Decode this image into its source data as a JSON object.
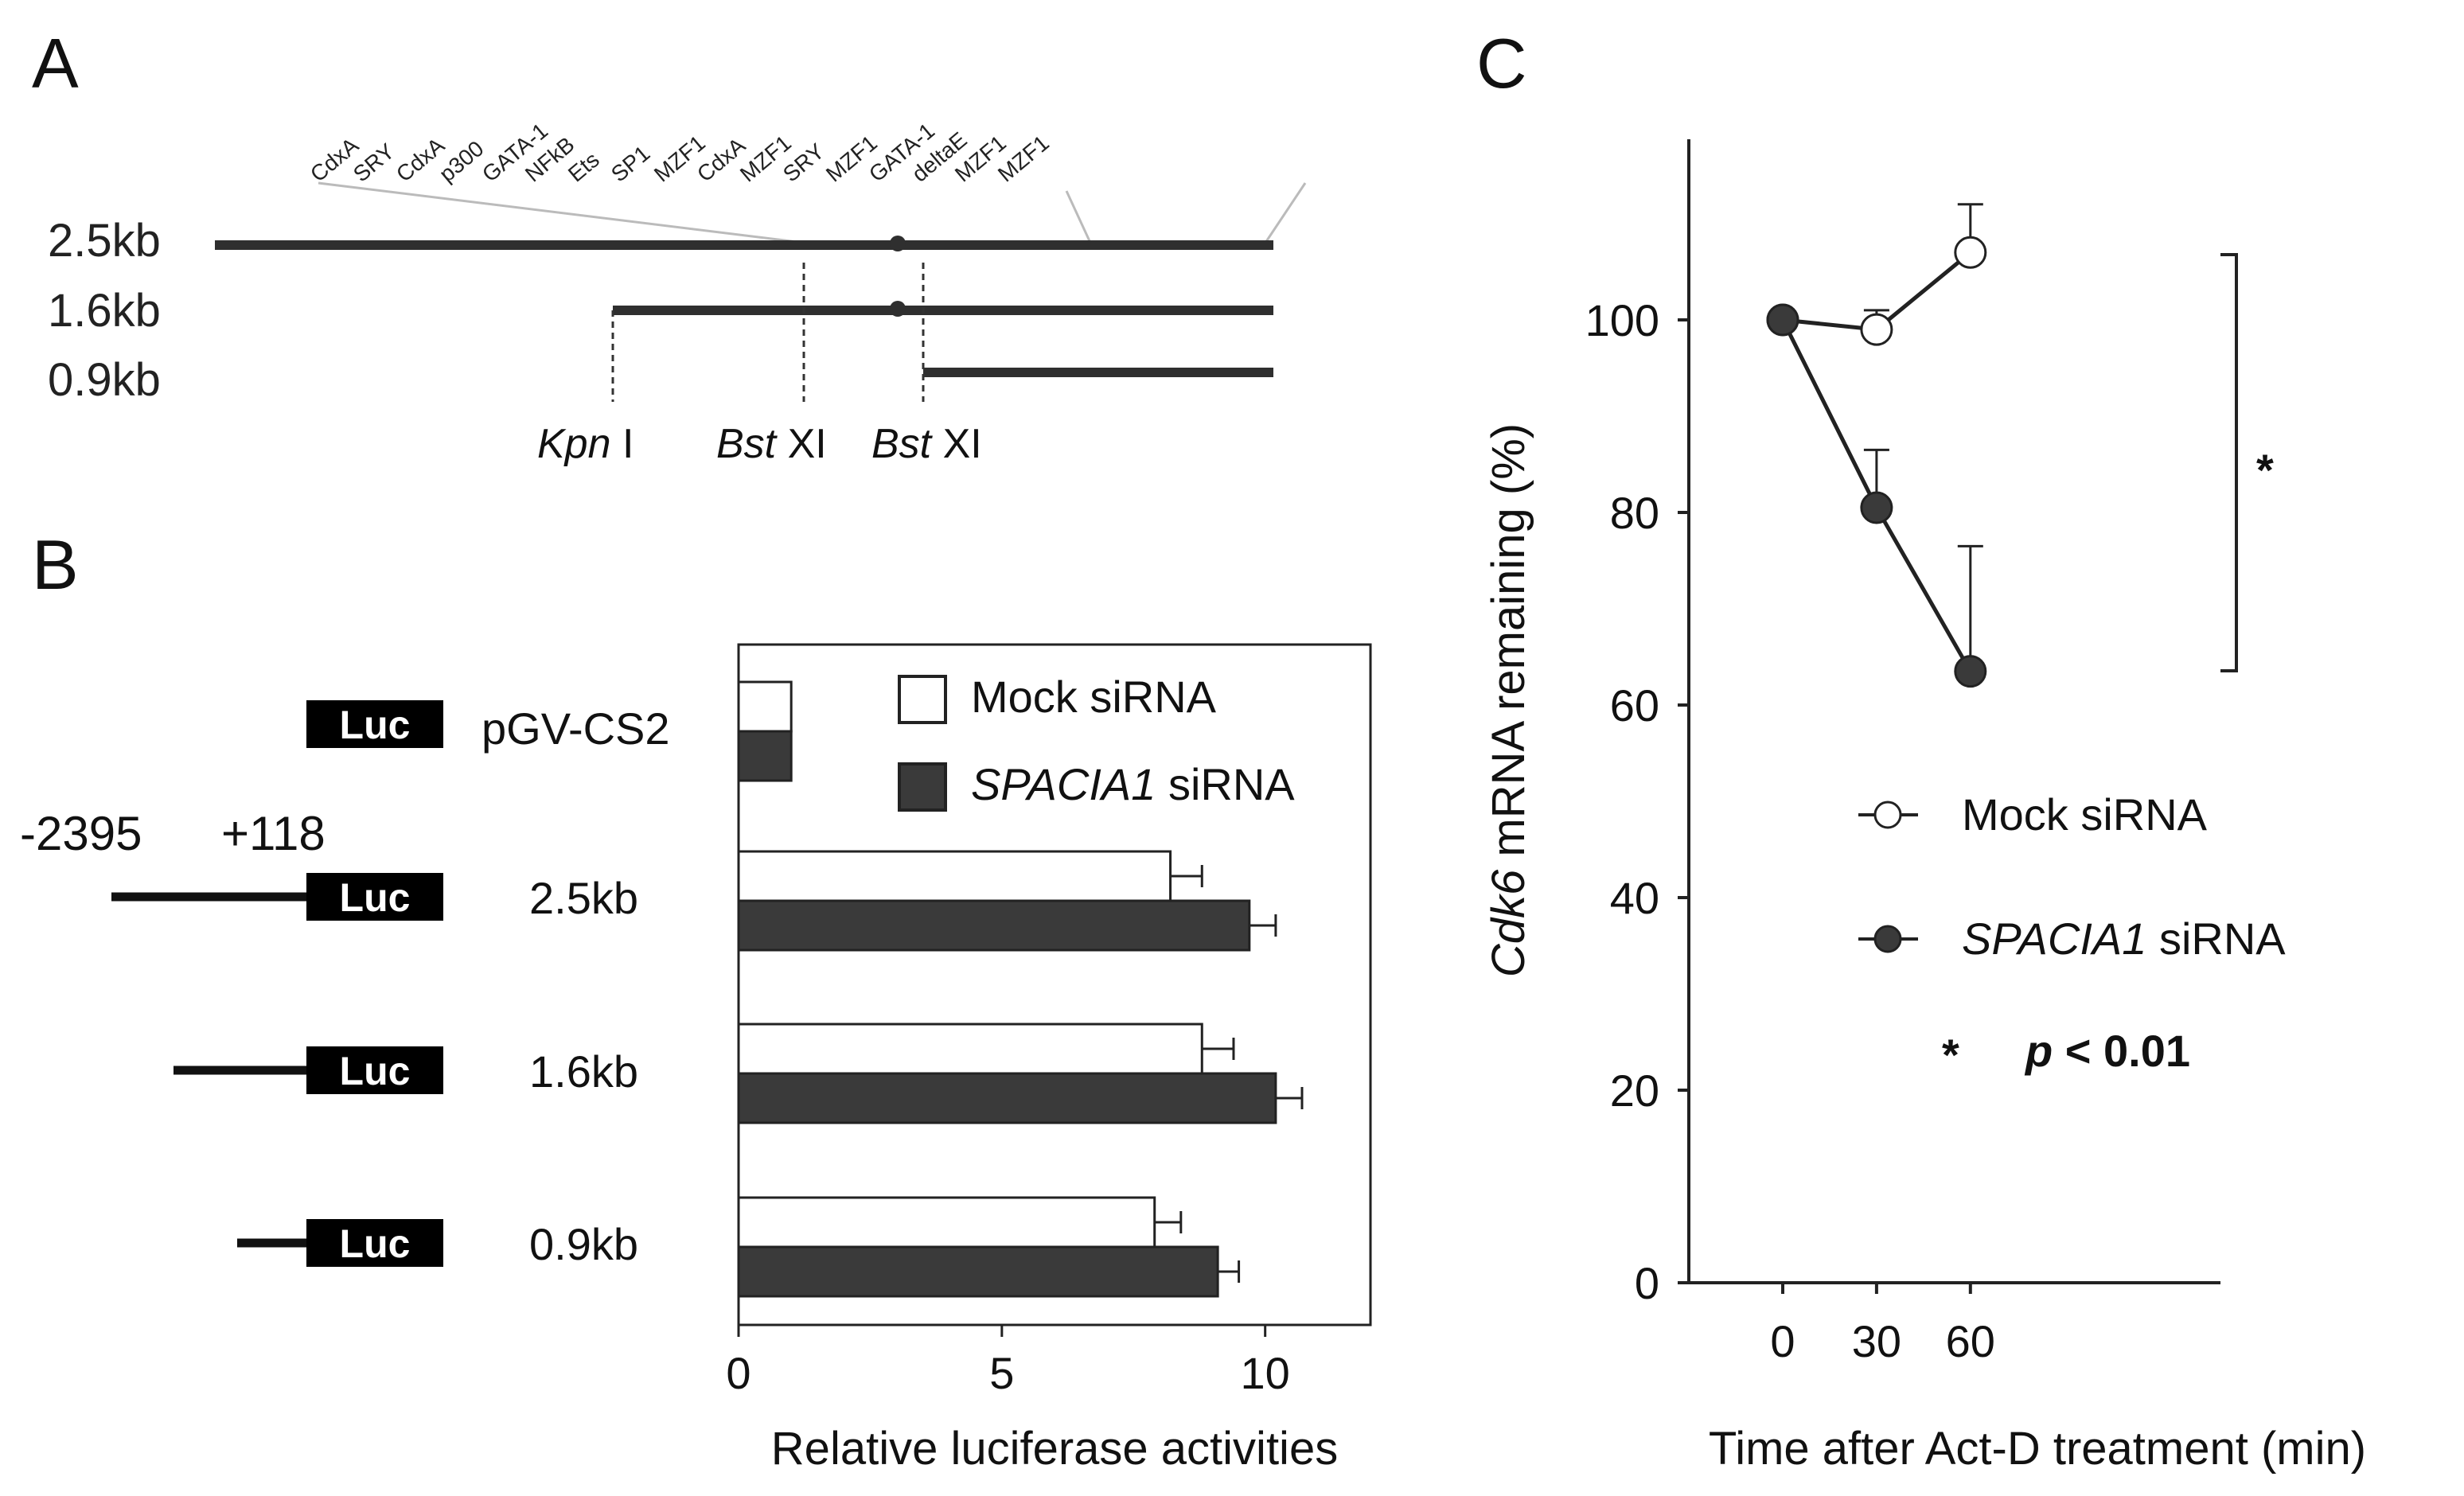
{
  "panels": {
    "a": "A",
    "b": "B",
    "c": "C"
  },
  "panel_a": {
    "sites": [
      "CdxA",
      "SRY",
      "CdxA",
      "p300",
      "GATA-1",
      "NFkB",
      "Ets",
      "SP1",
      "MZF1",
      "CdxA",
      "MZF1",
      "SRY",
      "MZF1",
      "GATA-1",
      "deltaE",
      "MZF1",
      "MZF1"
    ],
    "rows": [
      "2.5kb",
      "1.6kb",
      "0.9kb"
    ],
    "enzymes": [
      {
        "italic": "Kpn",
        "rest": " I"
      },
      {
        "italic": "Bst",
        "rest": " XI"
      },
      {
        "italic": "Bst",
        "rest": " XI"
      }
    ]
  },
  "panel_b": {
    "luc": "Luc",
    "coords": {
      "left": "-2395",
      "right": "+118"
    }
  },
  "chart_data": [
    {
      "type": "bar",
      "orientation": "horizontal",
      "categories": [
        "pGV-CS2",
        "2.5kb",
        "1.6kb",
        "0.9kb"
      ],
      "series": [
        {
          "name": "Mock siRNA",
          "color": "#ffffff",
          "values": [
            1.0,
            8.2,
            8.8,
            7.9
          ],
          "errors": [
            0,
            0.6,
            0.6,
            0.5
          ]
        },
        {
          "name_italic": "SPACIA1",
          "name_rest": " siRNA",
          "color": "#3a3a3a",
          "values": [
            1.0,
            9.7,
            10.2,
            9.1
          ],
          "errors": [
            0,
            0.5,
            0.5,
            0.4
          ]
        }
      ],
      "xlabel": "Relative luciferase activities",
      "xlim": [
        0,
        12
      ],
      "xticks": [
        0,
        5,
        10
      ],
      "legend": "top-right"
    },
    {
      "type": "line",
      "x": [
        0,
        30,
        60
      ],
      "series": [
        {
          "name": "Mock siRNA",
          "marker": "open-circle",
          "values": [
            100,
            99,
            107
          ],
          "errors": [
            0,
            2,
            5
          ]
        },
        {
          "name_italic": "SPACIA1",
          "name_rest": " siRNA",
          "marker": "filled-circle",
          "values": [
            100,
            80.5,
            63.5
          ],
          "errors": [
            0,
            6,
            13
          ]
        }
      ],
      "xticks": [
        0,
        30,
        60
      ],
      "yticks": [
        0,
        20,
        40,
        60,
        80,
        100
      ],
      "ylim": [
        0,
        120
      ],
      "ylabel_italic": "Cdk6",
      "ylabel_rest": " mRNA remaining (%)",
      "xlabel": "Time after Act-D treatment (min)",
      "significance_mark": "*",
      "significance_p": "p",
      "significance_rest": " < 0.01",
      "legend": "center-right"
    }
  ]
}
